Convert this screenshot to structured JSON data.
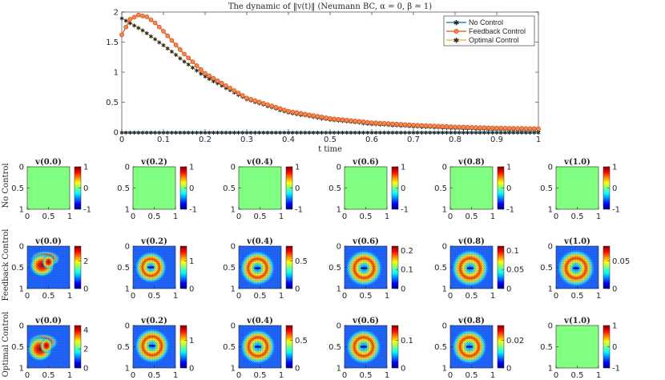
{
  "chart_data": [
    {
      "type": "line",
      "title": "The dynamic of ‖v(t)‖ (Neumann BC, α = 0, β = 1)",
      "xlabel": "t time",
      "ylabel": "",
      "xlim": [
        0,
        1
      ],
      "ylim": [
        0,
        2
      ],
      "xticks": [
        "0",
        "0.1",
        "0.2",
        "0.3",
        "0.4",
        "0.5",
        "0.6",
        "0.7",
        "0.8",
        "0.9",
        "1"
      ],
      "yticks": [
        "0",
        "0.5",
        "1",
        "1.5",
        "2"
      ],
      "legend_position": "top-right",
      "x": [
        0,
        0.02,
        0.04,
        0.06,
        0.08,
        0.1,
        0.15,
        0.2,
        0.3,
        0.4,
        0.5,
        0.6,
        0.7,
        0.8,
        0.9,
        1.0
      ],
      "series": [
        {
          "name": "No Control",
          "color": "#0072BD",
          "marker": "*",
          "values": [
            0,
            0,
            0,
            0,
            0,
            0,
            0,
            0,
            0,
            0,
            0,
            0,
            0,
            0,
            0,
            0
          ]
        },
        {
          "name": "Feedback Control",
          "color": "#D95319",
          "marker": "o",
          "values": [
            1.62,
            1.88,
            1.95,
            1.92,
            1.82,
            1.68,
            1.3,
            0.98,
            0.57,
            0.35,
            0.23,
            0.16,
            0.12,
            0.09,
            0.07,
            0.06
          ]
        },
        {
          "name": "Optimal Control",
          "color": "#EDB120",
          "marker": "*",
          "values": [
            1.9,
            1.82,
            1.74,
            1.65,
            1.55,
            1.45,
            1.18,
            0.93,
            0.55,
            0.33,
            0.21,
            0.14,
            0.1,
            0.07,
            0.05,
            0.04
          ]
        }
      ]
    },
    {
      "type": "heatmap",
      "row_labels": [
        "No Control",
        "Feedback Control",
        "Optimal Control"
      ],
      "panel_titles": [
        "v(0.0)",
        "v(0.2)",
        "v(0.4)",
        "v(0.6)",
        "v(0.8)",
        "v(1.0)"
      ],
      "x_ticks": [
        "0",
        "0.5",
        "1"
      ],
      "y_ticks": [
        "0",
        "0.5",
        "1"
      ],
      "colorbar_ticks": [
        [
          [
            "1",
            "0",
            "-1"
          ],
          [
            "1",
            "0",
            "-1"
          ],
          [
            "1",
            "0",
            "-1"
          ],
          [
            "1",
            "0",
            "-1"
          ],
          [
            "1",
            "0",
            "-1"
          ],
          [
            "1",
            "0",
            "-1"
          ]
        ],
        [
          [
            "2",
            "0"
          ],
          [
            "1",
            "0"
          ],
          [
            "0.5",
            "0"
          ],
          [
            "0.2",
            "0.1",
            "0"
          ],
          [
            "0.1",
            "0.05",
            "0"
          ],
          [
            "0.05",
            "0"
          ]
        ],
        [
          [
            "4",
            "2",
            "0"
          ],
          [
            "1",
            "0"
          ],
          [
            "0.5",
            "0"
          ],
          [
            "0.1",
            "0"
          ],
          [
            "0.02",
            "0"
          ],
          [
            "1",
            "0",
            "-1"
          ]
        ]
      ],
      "colormap": "jet",
      "uniform_color": "#80FF80"
    }
  ]
}
